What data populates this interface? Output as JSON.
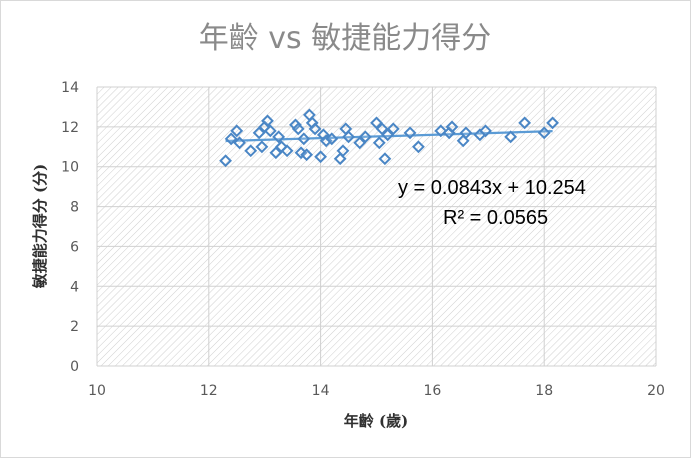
{
  "chart_data": {
    "type": "scatter",
    "title": "年齡 vs 敏捷能力得分",
    "xlabel": "年齡 (歲)",
    "ylabel": "敏捷能力得分 (分)",
    "xlim": [
      10,
      20
    ],
    "ylim": [
      0,
      14
    ],
    "x_ticks": [
      "10",
      "12",
      "14",
      "16",
      "18",
      "20"
    ],
    "y_ticks": [
      "0",
      "2",
      "4",
      "6",
      "8",
      "10",
      "12",
      "14"
    ],
    "grid": true,
    "legend": "none",
    "marker": "diamond",
    "series": [
      {
        "x": [
          12.3,
          12.4,
          12.5,
          12.55,
          12.75,
          12.9,
          12.95,
          13.0,
          13.05,
          13.1,
          13.2,
          13.25,
          13.3,
          13.4,
          13.55,
          13.6,
          13.65,
          13.7,
          13.75,
          13.8,
          13.85,
          13.9,
          14.0,
          14.05,
          14.1,
          14.2,
          14.35,
          14.4,
          14.45,
          14.5,
          14.7,
          14.8,
          15.0,
          15.05,
          15.1,
          15.15,
          15.2,
          15.3,
          15.6,
          15.75,
          16.15,
          16.3,
          16.35,
          16.55,
          16.6,
          16.85,
          16.95,
          17.4,
          17.65,
          18.0,
          18.15
        ],
        "y": [
          10.3,
          11.4,
          11.8,
          11.2,
          10.8,
          11.7,
          11.0,
          12.0,
          12.3,
          11.8,
          10.7,
          11.5,
          11.0,
          10.8,
          12.1,
          11.9,
          10.7,
          11.4,
          10.6,
          12.6,
          12.2,
          11.9,
          10.5,
          11.6,
          11.3,
          11.4,
          10.4,
          10.8,
          11.9,
          11.5,
          11.2,
          11.5,
          12.2,
          11.2,
          11.9,
          10.4,
          11.6,
          11.9,
          11.7,
          11.0,
          11.8,
          11.7,
          12.0,
          11.3,
          11.7,
          11.6,
          11.8,
          11.5,
          12.2,
          11.7,
          12.2
        ]
      }
    ],
    "trendline": {
      "type": "linear",
      "slope": 0.0843,
      "intercept": 10.254,
      "x_from": 12.3,
      "x_to": 18.15
    },
    "annotations": [
      "y = 0.0843x + 10.254",
      "R² = 0.0565"
    ],
    "colors": {
      "marker": "#4a86c5",
      "trendline": "#5b9bd5",
      "grid": "#d0d0d0",
      "hatch": "#cfcfcf"
    }
  }
}
